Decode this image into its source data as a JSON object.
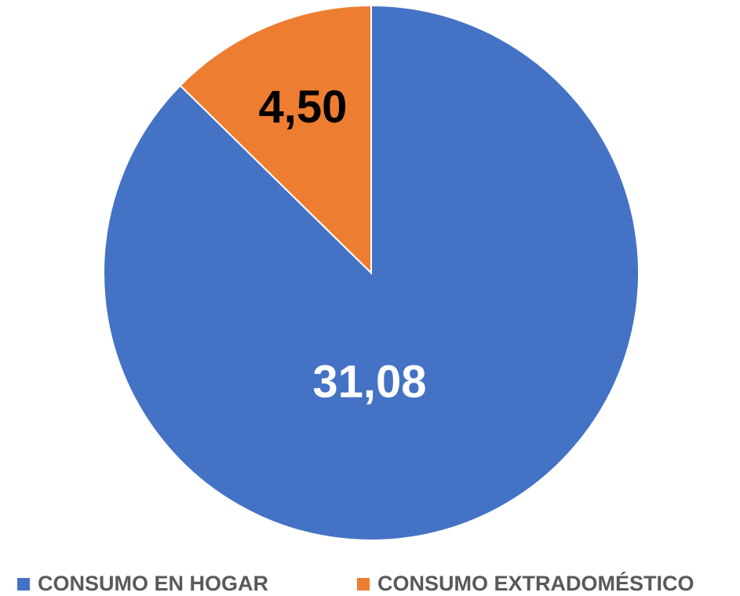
{
  "chart_data": {
    "type": "pie",
    "categories": [
      "CONSUMO EN HOGAR",
      "CONSUMO EXTRADOMÉSTICO"
    ],
    "values": [
      31.08,
      4.5
    ],
    "value_labels": [
      "31,08",
      "4,50"
    ],
    "colors": [
      "#4472c4",
      "#ed7d31"
    ],
    "label_colors": [
      "#ffffff",
      "#000000"
    ],
    "legend": "bottom"
  }
}
